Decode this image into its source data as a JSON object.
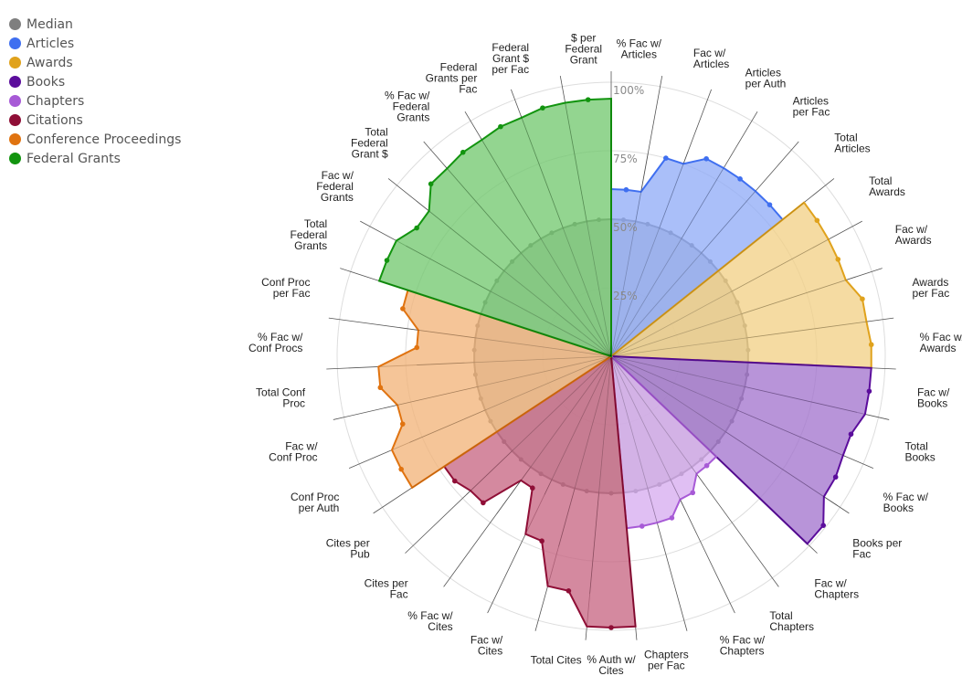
{
  "chart_data": {
    "type": "radar",
    "rings": [
      25,
      50,
      75,
      100
    ],
    "ring_labels": [
      "25%",
      "50%",
      "75%",
      "100%"
    ],
    "axes": [
      "% Fac w/\nArticles",
      "Fac w/\nArticles",
      "Articles\nper Auth",
      "Articles\nper Fac",
      "Total\nArticles",
      "Total\nAwards",
      "Fac w/\nAwards",
      "Awards\nper Fac",
      "% Fac w/\nAwards",
      "Fac w/\nBooks",
      "Total\nBooks",
      "% Fac w/\nBooks",
      "Books per\nFac",
      "Fac w/\nChapters",
      "Total\nChapters",
      "% Fac w/\nChapters",
      "Chapters\nper Fac",
      "% Auth w/\nCites",
      "Total Cites",
      "Fac w/\nCites",
      "% Fac w/\nCites",
      "Cites per\nFac",
      "Cites per\nPub",
      "Conf Proc\nper Auth",
      "Fac w/\nConf Proc",
      "Total Conf\nProc",
      "% Fac w/\nConf Procs",
      "Conf Proc\nper Fac",
      "Total\nFederal\nGrants",
      "Fac w/\nFederal\nGrants",
      "Total\nFederal\nGrant $",
      "% Fac w/\nFederal\nGrants",
      "Federal\nGrants per\nFac",
      "Federal\nGrant $\nper Fac",
      "$ per\nFederal\nGrant"
    ],
    "median": {
      "name": "Median",
      "color": "#7f7f7f",
      "values": [
        50,
        50,
        50,
        50,
        50,
        50,
        50,
        50,
        50,
        50,
        50,
        50,
        50,
        50,
        50,
        50,
        50,
        50,
        50,
        50,
        50,
        50,
        50,
        50,
        50,
        50,
        50,
        50,
        50,
        50,
        50,
        50,
        50,
        50,
        50
      ]
    },
    "series": [
      {
        "name": "Articles",
        "color": "#3f6ff0",
        "fill": "#8ea9f7",
        "start": 0,
        "values": [
          61,
          75,
          80,
          80,
          80
        ]
      },
      {
        "name": "Awards",
        "color": "#e0a21c",
        "fill": "#f1cf83",
        "start": 5,
        "values": [
          90,
          90,
          94,
          95
        ]
      },
      {
        "name": "Books",
        "color": "#5b0d9c",
        "fill": "#a070cc",
        "start": 9,
        "values": [
          95,
          92,
          93,
          99
        ]
      },
      {
        "name": "Chapters",
        "color": "#a75ad6",
        "fill": "#d6aaef",
        "start": 13,
        "values": [
          53,
          58,
          63,
          63
        ]
      },
      {
        "name": "Citations",
        "color": "#8f0e36",
        "fill": "#c5617f",
        "start": 17,
        "values": [
          99,
          87,
          72,
          56,
          71,
          73
        ]
      },
      {
        "name": "Conference Proceedings",
        "color": "#e07310",
        "fill": "#f2b275",
        "start": 23,
        "values": [
          87,
          80,
          85,
          71,
          78
        ]
      },
      {
        "name": "Federal Grants",
        "color": "#12940f",
        "fill": "#6fc76b",
        "start": 28,
        "values": [
          89,
          85,
          91,
          92,
          93,
          94,
          94
        ]
      }
    ]
  }
}
